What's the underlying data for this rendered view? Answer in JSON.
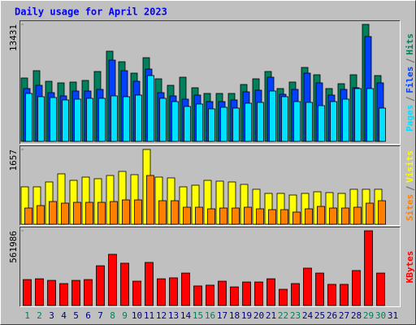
{
  "title": "Daily usage for April 2023",
  "chart_data": [
    {
      "type": "bar",
      "ylim": [
        0,
        13431
      ],
      "yticks": [
        13431
      ],
      "series": [
        {
          "name": "Hits",
          "color": "#00805c",
          "values": [
            7275,
            8115,
            6902,
            6716,
            6809,
            6995,
            8021,
            10353,
            9141,
            7835,
            9607,
            7182,
            6436,
            7368,
            6156,
            5503,
            5503,
            5503,
            6529,
            7182,
            8021,
            6063,
            6809,
            8488,
            7648,
            6063,
            6622,
            7648,
            13431,
            7555,
            0
          ]
        },
        {
          "name": "Files",
          "color": "#0040ff",
          "values": [
            6063,
            6436,
            5596,
            5223,
            5783,
            5783,
            5969,
            9327,
            8115,
            6902,
            8301,
            5596,
            5223,
            4850,
            5316,
            4570,
            4570,
            4757,
            5690,
            5876,
            7368,
            5410,
            5969,
            7835,
            6716,
            5316,
            5969,
            6156,
            12032,
            6716,
            0
          ]
        },
        {
          "name": "Pages",
          "color": "#00e0ff",
          "values": [
            5503,
            5130,
            5037,
            4757,
            4850,
            4943,
            4943,
            5223,
            5130,
            5316,
            7555,
            4943,
            4570,
            4011,
            4290,
            3731,
            3917,
            3824,
            4384,
            4477,
            5783,
            5130,
            4570,
            4477,
            4104,
            4570,
            4850,
            6063,
            6063,
            3824,
            0
          ]
        }
      ]
    },
    {
      "type": "bar",
      "ylim": [
        0,
        1657
      ],
      "yticks": [
        1657
      ],
      "series": [
        {
          "name": "Visits",
          "color": "#ffff00",
          "values": [
            829,
            829,
            937,
            1117,
            973,
            1045,
            1009,
            1081,
            1171,
            1099,
            1657,
            1045,
            1027,
            829,
            865,
            973,
            955,
            937,
            883,
            775,
            684,
            684,
            648,
            684,
            720,
            702,
            684,
            775,
            775,
            775,
            0
          ]
        },
        {
          "name": "Sites",
          "color": "#ff8000",
          "values": [
            360,
            414,
            504,
            468,
            486,
            486,
            486,
            504,
            540,
            540,
            1081,
            522,
            522,
            378,
            378,
            342,
            360,
            360,
            378,
            342,
            324,
            324,
            270,
            342,
            396,
            360,
            360,
            378,
            468,
            522,
            0
          ]
        }
      ]
    },
    {
      "type": "bar",
      "ylim": [
        0,
        561986
      ],
      "yticks": [
        561986
      ],
      "categories": [
        "1",
        "2",
        "3",
        "4",
        "5",
        "6",
        "7",
        "8",
        "9",
        "10",
        "11",
        "12",
        "13",
        "14",
        "15",
        "16",
        "17",
        "18",
        "19",
        "20",
        "21",
        "22",
        "23",
        "24",
        "25",
        "26",
        "27",
        "28",
        "29",
        "30",
        "31"
      ],
      "category_colors": [
        "#00805c",
        "#00805c",
        "#000080",
        "#000080",
        "#000080",
        "#000080",
        "#000080",
        "#00805c",
        "#00805c",
        "#000080",
        "#000080",
        "#000080",
        "#000080",
        "#000080",
        "#00805c",
        "#00805c",
        "#000080",
        "#000080",
        "#000080",
        "#000080",
        "#000080",
        "#00805c",
        "#00805c",
        "#000080",
        "#000080",
        "#000080",
        "#000080",
        "#000080",
        "#00805c",
        "#00805c",
        "#000080"
      ],
      "series": [
        {
          "name": "KBytes",
          "color": "#ff0000",
          "values": [
            195000,
            201000,
            189000,
            165000,
            189000,
            195000,
            299000,
            385000,
            318000,
            183000,
            324000,
            201000,
            208000,
            244000,
            147000,
            153000,
            183000,
            140000,
            177000,
            177000,
            201000,
            122000,
            165000,
            281000,
            244000,
            159000,
            159000,
            263000,
            561986,
            244000,
            0
          ]
        }
      ]
    }
  ]
}
